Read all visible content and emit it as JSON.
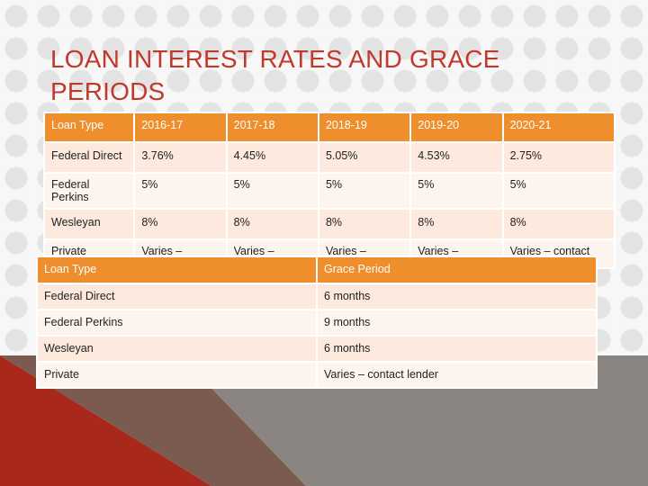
{
  "title": "LOAN INTEREST RATES AND GRACE PERIODS",
  "colors": {
    "accent": "#ee8e2c",
    "title": "#c0392b",
    "row_light": "#fdf4ee",
    "row_dark": "#fde9dd",
    "deco_red": "#a8281c",
    "deco_brown": "#7b5a4f",
    "deco_gray": "#8a8580"
  },
  "rates_table": {
    "headers": [
      "Loan Type",
      "2016-17",
      "2017-18",
      "2018-19",
      "2019-20",
      "2020-21"
    ],
    "rows": [
      [
        "Federal Direct",
        "3.76%",
        "4.45%",
        "5.05%",
        "4.53%",
        "2.75%"
      ],
      [
        "Federal Perkins",
        "5%",
        "5%",
        "5%",
        "5%",
        "5%"
      ],
      [
        "Wesleyan",
        "8%",
        "8%",
        "8%",
        "8%",
        "8%"
      ],
      [
        "Private",
        "Varies – contact lender",
        "Varies – contact lender",
        "Varies – contact lender",
        "Varies – contact lender",
        "Varies – contact lender"
      ]
    ]
  },
  "grace_table": {
    "headers": [
      "Loan Type",
      "Grace Period"
    ],
    "rows": [
      [
        "Federal Direct",
        "6 months"
      ],
      [
        "Federal Perkins",
        "9 months"
      ],
      [
        "Wesleyan",
        "6 months"
      ],
      [
        "Private",
        "Varies – contact lender"
      ]
    ]
  }
}
